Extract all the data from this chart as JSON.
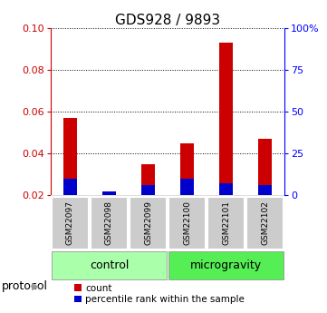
{
  "title": "GDS928 / 9893",
  "samples": [
    "GSM22097",
    "GSM22098",
    "GSM22099",
    "GSM22100",
    "GSM22101",
    "GSM22102"
  ],
  "count_values": [
    0.057,
    0.022,
    0.035,
    0.045,
    0.093,
    0.047
  ],
  "percentile_values": [
    0.028,
    0.022,
    0.025,
    0.028,
    0.026,
    0.025
  ],
  "ylim_left": [
    0.02,
    0.1
  ],
  "yticks_left": [
    0.02,
    0.04,
    0.06,
    0.08,
    0.1
  ],
  "yticks_right": [
    0,
    25,
    50,
    75,
    100
  ],
  "yticklabels_right": [
    "0",
    "25",
    "50",
    "75",
    "100%"
  ],
  "groups": [
    {
      "label": "control",
      "indices": [
        0,
        1,
        2
      ],
      "color": "#aaffaa"
    },
    {
      "label": "microgravity",
      "indices": [
        3,
        4,
        5
      ],
      "color": "#55ee55"
    }
  ],
  "protocol_label": "protocol",
  "bar_width": 0.35,
  "count_color": "#cc0000",
  "percentile_color": "#0000cc",
  "sample_label_bg": "#cccccc",
  "legend_count": "count",
  "legend_percentile": "percentile rank within the sample",
  "title_fontsize": 11,
  "tick_fontsize": 8,
  "label_fontsize": 9,
  "n_samples": 6
}
